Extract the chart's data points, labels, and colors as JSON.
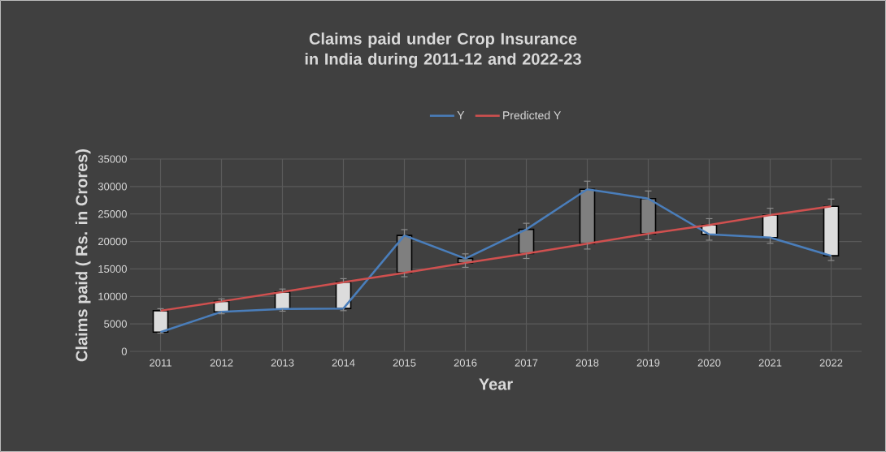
{
  "chart_data": {
    "type": "line",
    "title": "Claims paid under Crop Insurance in India during 2011-12 and 2022-23",
    "xlabel": "Year",
    "ylabel": "Claims paid ( Rs. in Crores)",
    "categories": [
      "2011",
      "2012",
      "2013",
      "2014",
      "2015",
      "2016",
      "2017",
      "2018",
      "2019",
      "2020",
      "2021",
      "2022"
    ],
    "series": [
      {
        "type": "bar",
        "values": [
          3900,
          1900,
          3100,
          4800,
          -6800,
          -800,
          -4400,
          -9900,
          -6400,
          1700,
          4100,
          9000
        ],
        "base": [
          3500,
          7200,
          7700,
          7800,
          21100,
          16900,
          22200,
          29500,
          27800,
          21300,
          20700,
          17400
        ],
        "colors": [
          "#dcdcdc",
          "#dcdcdc",
          "#dcdcdc",
          "#dcdcdc",
          "#7f7f7f",
          "#7f7f7f",
          "#7f7f7f",
          "#7f7f7f",
          "#7f7f7f",
          "#dcdcdc",
          "#dcdcdc",
          "#dcdcdc"
        ]
      },
      {
        "name": "Y",
        "color": "#4a7ebb",
        "values": [
          3500,
          7200,
          7700,
          7800,
          21100,
          16900,
          22200,
          29500,
          27800,
          21300,
          20700,
          17400
        ],
        "errors": [
          [
            3325,
            3500
          ],
          [
            6840,
            7200
          ],
          [
            7315,
            7700
          ],
          [
            7410,
            7800
          ],
          [
            21100,
            22155
          ],
          [
            16900,
            17745
          ],
          [
            22200,
            23310
          ],
          [
            29500,
            30975
          ],
          [
            27800,
            29190
          ],
          [
            20235,
            21300
          ],
          [
            19665,
            20700
          ],
          [
            16530,
            17400
          ]
        ]
      },
      {
        "name": "Predicted Y",
        "color": "#d0504f",
        "values": [
          7400,
          9100,
          10800,
          12600,
          14300,
          16100,
          17800,
          19600,
          21400,
          23000,
          24800,
          26400
        ],
        "errors": [
          [
            7400,
            7770
          ],
          [
            9100,
            9555
          ],
          [
            10800,
            11340
          ],
          [
            12600,
            13230
          ],
          [
            13585,
            14300
          ],
          [
            15295,
            16100
          ],
          [
            16910,
            17800
          ],
          [
            18620,
            19600
          ],
          [
            20330,
            21400
          ],
          [
            23000,
            24150
          ],
          [
            24800,
            26040
          ],
          [
            26400,
            27720
          ]
        ]
      }
    ],
    "ylim": [
      0,
      35000
    ],
    "yticks": [
      0,
      5000,
      10000,
      15000,
      20000,
      25000,
      30000,
      35000
    ],
    "grid": true,
    "legend": "top",
    "marker": "none",
    "line_style": "solid"
  }
}
